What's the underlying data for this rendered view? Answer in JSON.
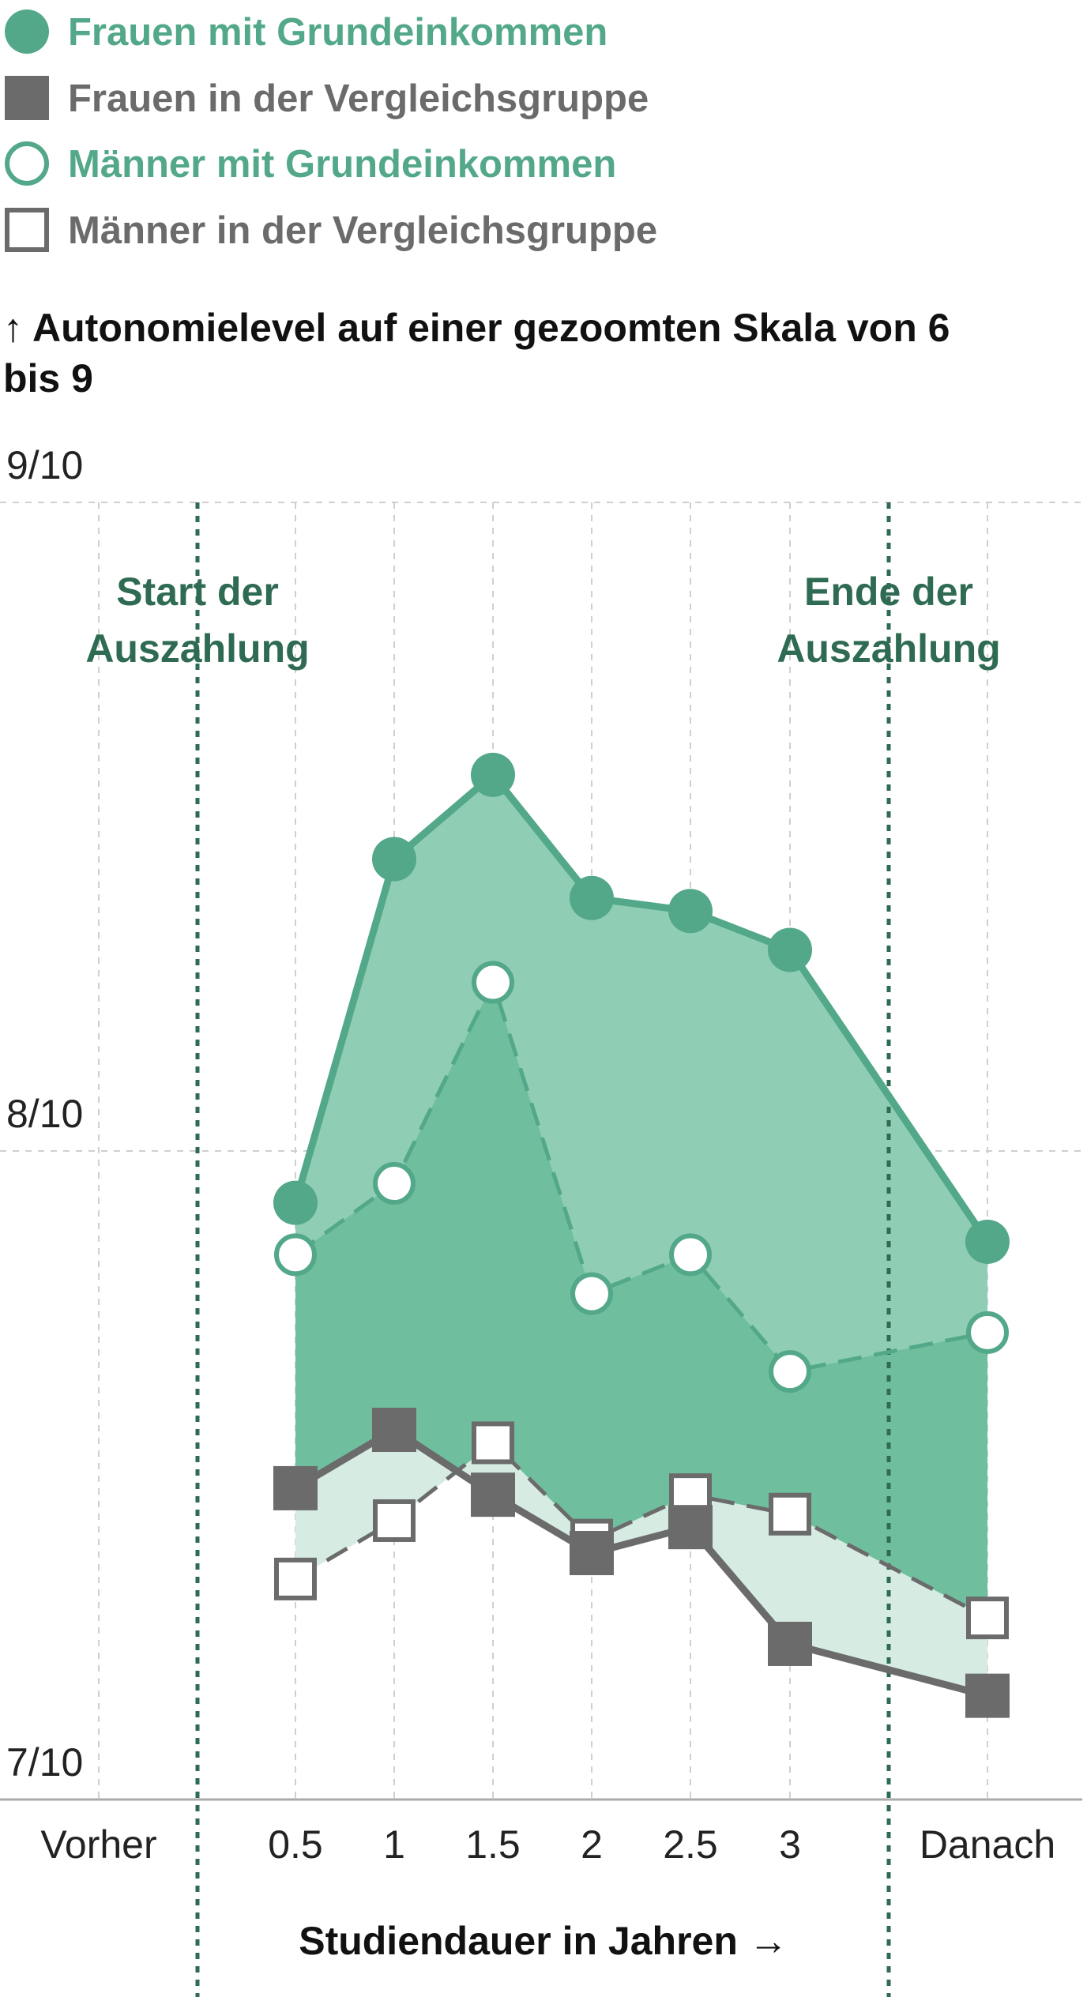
{
  "chart_data": {
    "type": "line",
    "legend": [
      {
        "label": "Frauen mit Grundeinkommen",
        "marker": "filled-circle",
        "color": "#52a888"
      },
      {
        "label": "Frauen in der Vergleichsgruppe",
        "marker": "filled-square",
        "color": "#6b6b6b"
      },
      {
        "label": "Männer mit Grundeinkommen",
        "marker": "open-circle",
        "color": "#52a888"
      },
      {
        "label": "Männer in der Vergleichsgruppe",
        "marker": "open-square",
        "color": "#6b6b6b"
      }
    ],
    "ylabel": "↑ Autonomielevel auf einer gezoomten Skala von 6 bis 9",
    "ylabel_lines": [
      "↑ Autonomielevel auf einer gezoomten Skala von 6",
      "bis 9"
    ],
    "ylim": [
      7,
      9
    ],
    "yticks": [
      {
        "value": 9,
        "label": "9/10"
      },
      {
        "value": 8,
        "label": "8/10"
      },
      {
        "value": 7,
        "label": "7/10"
      }
    ],
    "categories": [
      "Vorher",
      "0.5",
      "1",
      "1.5",
      "2",
      "2.5",
      "3",
      "Danach"
    ],
    "xlabel": "Studiendauer in Jahren →",
    "markers": [
      {
        "label_lines": [
          "Start der",
          "Auszahlung"
        ],
        "after_category": "Vorher"
      },
      {
        "label_lines": [
          "Ende der",
          "Auszahlung"
        ],
        "after_category": "3"
      }
    ],
    "series": [
      {
        "name": "Frauen mit Grundeinkommen",
        "style": "solid",
        "marker": "filled-circle",
        "color": "#52a888",
        "values": [
          null,
          7.92,
          8.45,
          8.58,
          8.39,
          8.37,
          8.31,
          7.86
        ]
      },
      {
        "name": "Männer mit Grundeinkommen",
        "style": "dashed",
        "marker": "open-circle",
        "color": "#52a888",
        "values": [
          null,
          7.84,
          7.95,
          8.26,
          7.78,
          7.84,
          7.66,
          7.72
        ]
      },
      {
        "name": "Frauen in der Vergleichsgruppe",
        "style": "solid",
        "marker": "filled-square",
        "color": "#6b6b6b",
        "values": [
          null,
          7.48,
          7.57,
          7.47,
          7.38,
          7.42,
          7.24,
          7.16
        ]
      },
      {
        "name": "Männer in der Vergleichsgruppe",
        "style": "dashed",
        "marker": "open-square",
        "color": "#6b6b6b",
        "values": [
          null,
          7.34,
          7.43,
          7.55,
          7.4,
          7.47,
          7.44,
          7.28
        ]
      }
    ],
    "grid": true
  },
  "colors": {
    "green": "#52a888",
    "darkgreen": "#2f6b52",
    "grey": "#6b6b6b",
    "women_band": "#8fcdb4",
    "men_band": "#6fbf9e",
    "light_band": "#d6ece3"
  }
}
